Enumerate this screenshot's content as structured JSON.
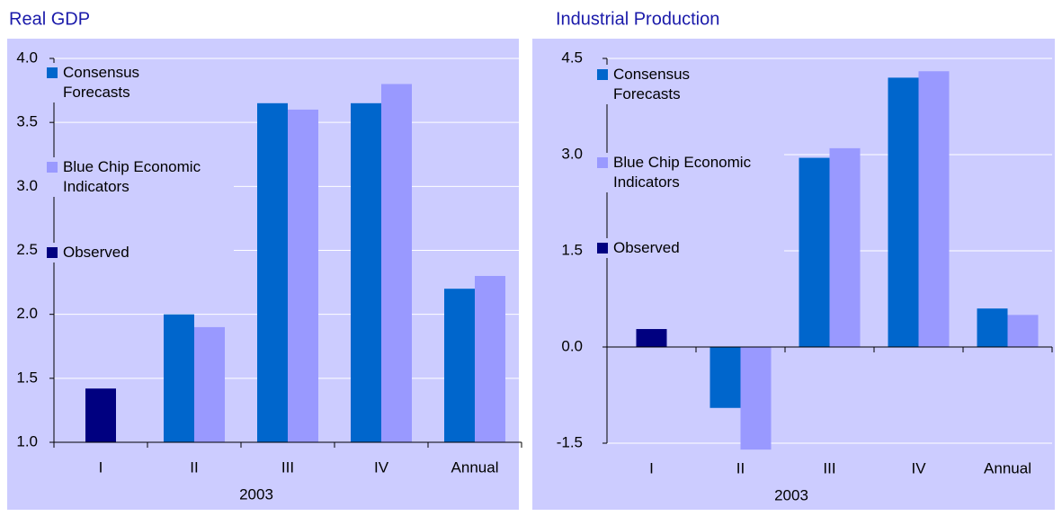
{
  "chart_data": [
    {
      "type": "bar",
      "title": "Real GDP",
      "x_label": "2003",
      "categories": [
        "I",
        "II",
        "III",
        "IV",
        "Annual"
      ],
      "series": [
        {
          "name": "Consensus Forecasts",
          "color": "#0066cc",
          "values": [
            null,
            2.0,
            3.65,
            3.65,
            2.2
          ]
        },
        {
          "name": "Blue Chip Economic Indicators",
          "color": "#9999ff",
          "values": [
            null,
            1.9,
            3.6,
            3.8,
            2.3
          ]
        },
        {
          "name": "Observed",
          "color": "#000080",
          "values": [
            1.42,
            null,
            null,
            null,
            null
          ]
        }
      ],
      "ylim": [
        1,
        4
      ],
      "yticks": [
        {
          "value": 1,
          "label": "1.0"
        },
        1.5,
        {
          "value": 2,
          "label": "2.0"
        },
        2.5,
        {
          "value": 3,
          "label": "3.0"
        },
        3.5,
        {
          "value": 4,
          "label": "4.0"
        }
      ],
      "grid": true
    },
    {
      "type": "bar",
      "title": "Industrial Production",
      "x_label": "2003",
      "categories": [
        "I",
        "II",
        "III",
        "IV",
        "Annual"
      ],
      "series": [
        {
          "name": "Consensus Forecasts",
          "color": "#0066cc",
          "values": [
            null,
            -0.95,
            2.95,
            4.2,
            0.6
          ]
        },
        {
          "name": "Blue Chip Economic Indicators",
          "color": "#9999ff",
          "values": [
            null,
            -1.6,
            3.1,
            4.3,
            0.5
          ]
        },
        {
          "name": "Observed",
          "color": "#000080",
          "values": [
            0.28,
            null,
            null,
            null,
            null
          ]
        }
      ],
      "ylim": [
        -1.5,
        4.5
      ],
      "yticks": [
        -1.5,
        {
          "value": 0,
          "label": "0.0"
        },
        1.5,
        {
          "value": 3,
          "label": "3.0"
        },
        4.5
      ],
      "grid": true
    }
  ]
}
